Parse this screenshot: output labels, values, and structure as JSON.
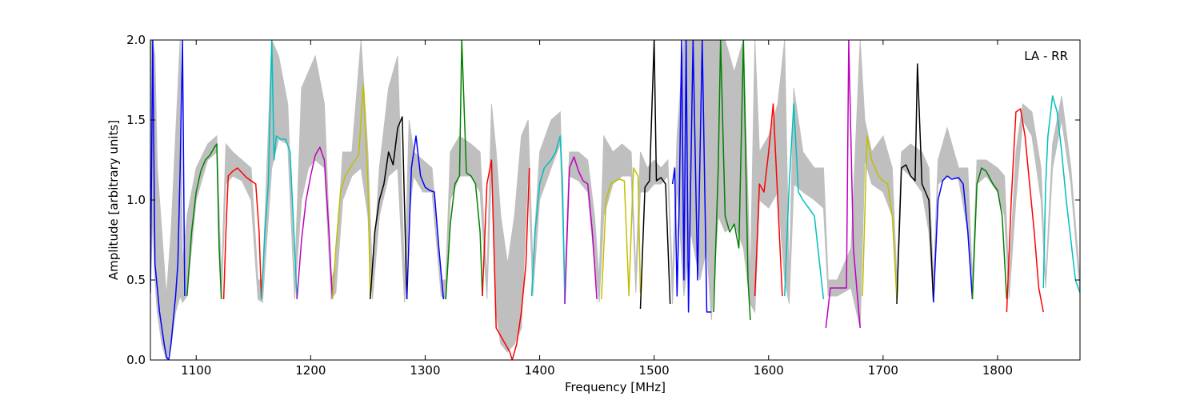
{
  "chart_data": {
    "type": "line",
    "title": "",
    "annotation": "LA - RR",
    "xlabel": "Frequency [MHz]",
    "ylabel": "Amplitude [arbitrary units]",
    "xlim": [
      1060,
      1872
    ],
    "ylim": [
      0.0,
      2.0
    ],
    "xticks": [
      1100,
      1200,
      1300,
      1400,
      1500,
      1600,
      1700,
      1800
    ],
    "xtick_labels": [
      "1100",
      "1200",
      "1300",
      "1400",
      "1500",
      "1600",
      "1700",
      "1800"
    ],
    "yticks": [
      0.0,
      0.5,
      1.0,
      1.5,
      2.0
    ],
    "ytick_labels": [
      "0.0",
      "0.5",
      "1.0",
      "1.5",
      "2.0"
    ],
    "grid": false,
    "legend": "none",
    "band_colors": [
      "#0000ff",
      "#008000",
      "#ff0000",
      "#00bfbf",
      "#bf00bf",
      "#bfbf00",
      "#000000"
    ],
    "background_color": "#bfbfbf",
    "background_band": {
      "x": [
        1060,
        1062,
        1064,
        1066,
        1070,
        1074,
        1078,
        1082,
        1086,
        1088,
        1092,
        1100,
        1110,
        1118,
        1122,
        1126,
        1132,
        1140,
        1148,
        1154,
        1158,
        1166,
        1172,
        1180,
        1186,
        1192,
        1198,
        1204,
        1212,
        1218,
        1222,
        1228,
        1236,
        1244,
        1250,
        1254,
        1260,
        1268,
        1276,
        1282,
        1286,
        1290,
        1298,
        1306,
        1314,
        1318,
        1322,
        1330,
        1340,
        1348,
        1354,
        1358,
        1362,
        1366,
        1372,
        1378,
        1384,
        1390,
        1394,
        1400,
        1410,
        1418,
        1422,
        1426,
        1434,
        1442,
        1448,
        1452,
        1456,
        1464,
        1472,
        1480,
        1484,
        1488,
        1494,
        1500,
        1506,
        1512,
        1516,
        1520,
        1526,
        1532,
        1540,
        1546,
        1550,
        1556,
        1562,
        1570,
        1578,
        1584,
        1588,
        1592,
        1600,
        1608,
        1614,
        1618,
        1622,
        1630,
        1640,
        1648,
        1652,
        1660,
        1672,
        1680,
        1684,
        1690,
        1700,
        1708,
        1712,
        1716,
        1724,
        1734,
        1740,
        1744,
        1748,
        1756,
        1766,
        1774,
        1778,
        1782,
        1790,
        1800,
        1806,
        1810,
        1816,
        1822,
        1830,
        1838,
        1842,
        1848,
        1856,
        1864,
        1872
      ],
      "low": [
        0.42,
        0.9,
        0.5,
        0.3,
        0.1,
        0.0,
        0.1,
        0.3,
        0.4,
        0.36,
        0.4,
        1.0,
        1.25,
        1.3,
        0.38,
        1.1,
        1.15,
        1.12,
        1.0,
        0.38,
        0.36,
        1.2,
        1.38,
        1.35,
        0.38,
        1.0,
        1.2,
        1.25,
        1.2,
        0.38,
        0.42,
        1.0,
        1.15,
        1.2,
        0.9,
        0.38,
        0.9,
        1.15,
        1.2,
        0.36,
        0.9,
        1.15,
        1.05,
        1.05,
        0.4,
        0.38,
        1.0,
        1.15,
        1.15,
        1.05,
        0.38,
        1.2,
        0.3,
        0.1,
        0.05,
        0.1,
        0.2,
        1.2,
        0.4,
        1.0,
        1.2,
        1.35,
        0.4,
        1.15,
        1.12,
        1.05,
        0.6,
        0.36,
        0.9,
        1.1,
        1.15,
        1.15,
        0.42,
        1.05,
        1.05,
        1.1,
        1.1,
        1.15,
        0.35,
        1.1,
        0.4,
        0.8,
        0.5,
        0.7,
        0.25,
        0.9,
        0.8,
        0.85,
        0.7,
        0.35,
        0.3,
        1.0,
        0.95,
        1.05,
        0.5,
        0.35,
        1.1,
        1.05,
        1.0,
        0.95,
        0.4,
        0.4,
        0.45,
        0.2,
        1.25,
        1.1,
        1.05,
        0.9,
        0.38,
        1.2,
        1.15,
        1.05,
        0.8,
        0.36,
        1.1,
        1.15,
        1.13,
        0.8,
        0.38,
        1.1,
        1.15,
        1.05,
        0.9,
        0.38,
        1.0,
        1.5,
        1.4,
        1.0,
        0.45,
        1.2,
        1.5,
        1.1,
        0.42
      ],
      "high": [
        2.0,
        2.0,
        1.9,
        1.2,
        0.8,
        0.4,
        0.8,
        1.4,
        2.0,
        0.6,
        0.9,
        1.2,
        1.35,
        1.4,
        0.5,
        1.35,
        1.3,
        1.25,
        1.2,
        0.5,
        0.5,
        2.0,
        1.9,
        1.6,
        0.5,
        1.7,
        1.8,
        1.9,
        1.6,
        0.5,
        0.6,
        1.3,
        1.3,
        2.0,
        1.3,
        0.5,
        1.2,
        1.7,
        1.9,
        0.5,
        1.5,
        1.3,
        1.25,
        1.2,
        0.5,
        0.5,
        1.3,
        1.4,
        1.35,
        1.3,
        0.5,
        1.6,
        1.3,
        0.9,
        0.6,
        0.9,
        1.4,
        1.5,
        0.6,
        1.3,
        1.5,
        1.55,
        0.5,
        1.3,
        1.3,
        1.25,
        0.9,
        0.5,
        1.4,
        1.3,
        1.35,
        1.3,
        0.55,
        1.3,
        1.2,
        1.25,
        1.2,
        1.25,
        0.5,
        1.4,
        2.0,
        2.0,
        2.0,
        2.0,
        2.0,
        2.0,
        2.0,
        1.8,
        2.0,
        0.5,
        2.0,
        1.3,
        1.4,
        1.6,
        2.0,
        0.5,
        1.7,
        1.3,
        1.2,
        1.2,
        0.5,
        0.5,
        0.7,
        2.0,
        1.5,
        1.3,
        1.4,
        1.2,
        0.5,
        1.3,
        1.35,
        1.3,
        1.2,
        0.5,
        1.25,
        1.45,
        1.2,
        1.2,
        0.5,
        1.25,
        1.25,
        1.2,
        1.15,
        0.5,
        1.3,
        1.6,
        1.55,
        1.2,
        0.5,
        1.35,
        1.65,
        1.2,
        0.5
      ]
    },
    "series": [
      {
        "color": "#0000ff",
        "x": [
          1060,
          1062,
          1064,
          1066,
          1068,
          1070,
          1072,
          1074,
          1076,
          1078,
          1080,
          1082,
          1084,
          1086,
          1088,
          1090
        ],
        "y": [
          0.42,
          2.0,
          0.6,
          0.45,
          0.3,
          0.2,
          0.1,
          0.02,
          0.0,
          0.1,
          0.25,
          0.4,
          0.6,
          1.2,
          2.0,
          0.4
        ]
      },
      {
        "color": "#008000",
        "x": [
          1092,
          1096,
          1100,
          1104,
          1108,
          1112,
          1116,
          1118,
          1120,
          1122
        ],
        "y": [
          0.4,
          0.8,
          1.05,
          1.18,
          1.25,
          1.28,
          1.33,
          1.35,
          0.7,
          0.38
        ]
      },
      {
        "color": "#ff0000",
        "x": [
          1124,
          1126,
          1128,
          1132,
          1136,
          1140,
          1144,
          1148,
          1152,
          1155,
          1157
        ],
        "y": [
          0.38,
          0.8,
          1.15,
          1.18,
          1.2,
          1.17,
          1.14,
          1.12,
          1.1,
          0.8,
          0.38
        ]
      },
      {
        "color": "#00bfbf",
        "x": [
          1157,
          1160,
          1163,
          1166,
          1168,
          1170,
          1174,
          1178,
          1182,
          1186,
          1188
        ],
        "y": [
          0.38,
          0.8,
          1.1,
          2.0,
          1.25,
          1.4,
          1.38,
          1.38,
          1.3,
          0.7,
          0.38
        ]
      },
      {
        "color": "#bf00bf",
        "x": [
          1188,
          1192,
          1196,
          1200,
          1204,
          1208,
          1212,
          1216,
          1219
        ],
        "y": [
          0.38,
          0.75,
          1.0,
          1.15,
          1.28,
          1.33,
          1.25,
          0.8,
          0.38
        ]
      },
      {
        "color": "#bfbf00",
        "x": [
          1219,
          1222,
          1226,
          1230,
          1236,
          1242,
          1246,
          1250,
          1252
        ],
        "y": [
          0.38,
          0.7,
          1.05,
          1.15,
          1.22,
          1.28,
          1.72,
          1.1,
          0.4
        ]
      },
      {
        "color": "#000000",
        "x": [
          1252,
          1256,
          1260,
          1264,
          1268,
          1272,
          1276,
          1280,
          1284
        ],
        "y": [
          0.38,
          0.8,
          1.0,
          1.1,
          1.3,
          1.22,
          1.45,
          1.52,
          0.38
        ]
      },
      {
        "color": "#0000ff",
        "x": [
          1284,
          1288,
          1292,
          1296,
          1300,
          1304,
          1308,
          1312,
          1316
        ],
        "y": [
          0.38,
          1.2,
          1.4,
          1.15,
          1.08,
          1.06,
          1.05,
          0.7,
          0.38
        ]
      },
      {
        "color": "#008000",
        "x": [
          1318,
          1322,
          1326,
          1330,
          1332,
          1336,
          1340,
          1344,
          1348,
          1350
        ],
        "y": [
          0.38,
          0.85,
          1.1,
          1.15,
          2.0,
          1.17,
          1.15,
          1.1,
          0.8,
          0.4
        ]
      },
      {
        "color": "#ff0000",
        "x": [
          1350,
          1354,
          1358,
          1362,
          1366,
          1370,
          1374,
          1376,
          1380,
          1384,
          1388,
          1391
        ],
        "y": [
          0.4,
          1.1,
          1.25,
          0.2,
          0.15,
          0.1,
          0.05,
          0.0,
          0.1,
          0.3,
          0.6,
          1.2
        ]
      },
      {
        "color": "#00bfbf",
        "x": [
          1393,
          1396,
          1400,
          1404,
          1410,
          1414,
          1418,
          1420,
          1422
        ],
        "y": [
          0.4,
          0.8,
          1.1,
          1.2,
          1.25,
          1.3,
          1.4,
          1.1,
          0.35
        ]
      },
      {
        "color": "#bf00bf",
        "x": [
          1422,
          1426,
          1430,
          1434,
          1438,
          1442,
          1446,
          1450
        ],
        "y": [
          0.35,
          1.2,
          1.27,
          1.18,
          1.12,
          1.1,
          0.8,
          0.38
        ]
      },
      {
        "color": "#bfbf00",
        "x": [
          1454,
          1458,
          1462,
          1466,
          1470,
          1474,
          1478
        ],
        "y": [
          0.38,
          1.0,
          1.1,
          1.12,
          1.13,
          1.12,
          0.4
        ]
      },
      {
        "color": "#bfbf00",
        "x": [
          1478,
          1482,
          1486,
          1488
        ],
        "y": [
          0.42,
          1.2,
          1.15,
          0.42
        ]
      },
      {
        "color": "#000000",
        "x": [
          1488,
          1492,
          1496,
          1500,
          1502,
          1506,
          1510,
          1514
        ],
        "y": [
          0.32,
          1.08,
          1.12,
          2.0,
          1.12,
          1.14,
          1.1,
          0.35
        ]
      },
      {
        "color": "#0000ff",
        "x": [
          1516,
          1518,
          1520,
          1522,
          1524,
          1526,
          1528,
          1530,
          1534,
          1538,
          1542,
          1546,
          1550
        ],
        "y": [
          1.1,
          1.2,
          0.4,
          1.0,
          2.0,
          0.5,
          2.0,
          0.3,
          2.0,
          0.5,
          2.0,
          0.3,
          0.3
        ]
      },
      {
        "color": "#008000",
        "x": [
          1552,
          1556,
          1558,
          1562,
          1566,
          1570,
          1574,
          1578,
          1582,
          1584
        ],
        "y": [
          0.3,
          1.2,
          2.0,
          0.9,
          0.8,
          0.85,
          0.7,
          2.0,
          0.5,
          0.25
        ]
      },
      {
        "color": "#ff0000",
        "x": [
          1588,
          1592,
          1596,
          1600,
          1604,
          1608,
          1612
        ],
        "y": [
          0.4,
          1.1,
          1.05,
          1.3,
          1.6,
          1.0,
          0.4
        ]
      },
      {
        "color": "#00bfbf",
        "x": [
          1614,
          1618,
          1622,
          1626,
          1630,
          1640,
          1648
        ],
        "y": [
          0.4,
          1.1,
          1.6,
          1.05,
          1.0,
          0.9,
          0.38
        ]
      },
      {
        "color": "#bf00bf",
        "x": [
          1650,
          1654,
          1660,
          1668,
          1670,
          1674,
          1680
        ],
        "y": [
          0.2,
          0.45,
          0.45,
          0.45,
          2.0,
          0.7,
          0.2
        ]
      },
      {
        "color": "#bfbf00",
        "x": [
          1682,
          1686,
          1690,
          1696,
          1700,
          1704,
          1708,
          1712
        ],
        "y": [
          0.4,
          1.4,
          1.25,
          1.15,
          1.12,
          1.1,
          0.9,
          0.38
        ]
      },
      {
        "color": "#000000",
        "x": [
          1712,
          1716,
          1720,
          1724,
          1728,
          1730,
          1734,
          1740,
          1744
        ],
        "y": [
          0.35,
          1.2,
          1.22,
          1.15,
          1.12,
          1.85,
          1.1,
          1.0,
          0.36
        ]
      },
      {
        "color": "#0000ff",
        "x": [
          1744,
          1748,
          1752,
          1756,
          1760,
          1766,
          1770,
          1774,
          1778
        ],
        "y": [
          0.36,
          1.0,
          1.12,
          1.15,
          1.13,
          1.14,
          1.1,
          0.8,
          0.38
        ]
      },
      {
        "color": "#008000",
        "x": [
          1778,
          1782,
          1786,
          1790,
          1796,
          1800,
          1804,
          1808
        ],
        "y": [
          0.38,
          1.1,
          1.2,
          1.18,
          1.1,
          1.06,
          0.9,
          0.38
        ]
      },
      {
        "color": "#ff0000",
        "x": [
          1808,
          1812,
          1816,
          1820,
          1824,
          1828,
          1832,
          1836,
          1840
        ],
        "y": [
          0.3,
          1.0,
          1.55,
          1.57,
          1.4,
          1.1,
          0.8,
          0.45,
          0.3
        ]
      },
      {
        "color": "#00bfbf",
        "x": [
          1840,
          1842,
          1844,
          1848,
          1852,
          1856,
          1860,
          1864,
          1868,
          1872
        ],
        "y": [
          0.45,
          1.1,
          1.4,
          1.65,
          1.55,
          1.3,
          1.0,
          0.75,
          0.5,
          0.42
        ]
      }
    ]
  }
}
